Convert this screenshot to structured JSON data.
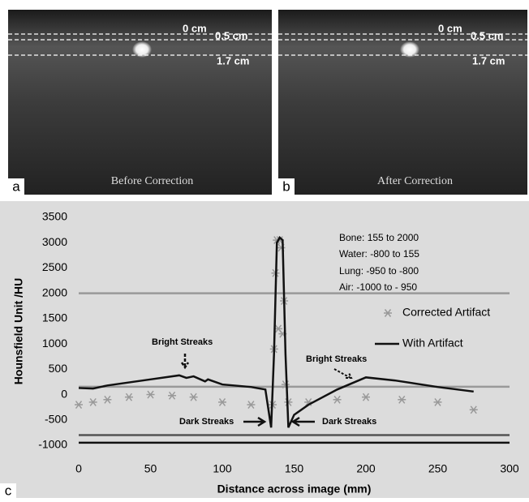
{
  "panels": [
    {
      "label": "a",
      "caption": "Before Correction",
      "depths": [
        "0 cm",
        "0.5 cm",
        "1.7 cm"
      ]
    },
    {
      "label": "b",
      "caption": "After Correction",
      "depths": [
        "0 cm",
        "0.5 cm",
        "1.7 cm"
      ]
    }
  ],
  "chart_label": "c",
  "chart_data": {
    "type": "line",
    "xlabel": "Distance across image (mm)",
    "ylabel": "Hounsfield Unit /HU",
    "xlim": [
      0,
      300
    ],
    "xticks": [
      0,
      50,
      100,
      150,
      200,
      250,
      300
    ],
    "ylim": [
      -1000,
      3500
    ],
    "yticks": [
      -1000,
      -500,
      0,
      500,
      1000,
      1500,
      2000,
      2500,
      3000,
      3500
    ],
    "legend": "right",
    "reference_lines": [
      2000,
      155,
      -800,
      -950
    ],
    "annotations": [
      "Bone: 155 to 2000",
      "Water: -800 to 155",
      "Lung:  -950 to -800",
      "Air: -1000 to - 950",
      "Bright Streaks",
      "Bright Streaks",
      "Dark Streaks",
      "Dark Streaks"
    ],
    "series": [
      {
        "name": "Corrected Artifact",
        "color": "#999999",
        "marker": "asterisk",
        "x": [
          0,
          10,
          20,
          35,
          50,
          65,
          80,
          100,
          120,
          135,
          136,
          137,
          138,
          139,
          140,
          141,
          142,
          143,
          144,
          146,
          160,
          180,
          200,
          225,
          250,
          275
        ],
        "values": [
          -200,
          -150,
          -100,
          -50,
          0,
          -20,
          -50,
          -150,
          -200,
          -200,
          900,
          2400,
          3050,
          1300,
          3050,
          2900,
          1200,
          1850,
          200,
          -150,
          -150,
          -100,
          -50,
          -100,
          -150,
          -300
        ]
      },
      {
        "name": "With Artifact",
        "color": "#111111",
        "marker": "none",
        "x": [
          0,
          10,
          20,
          50,
          70,
          75,
          80,
          88,
          90,
          100,
          120,
          130,
          134,
          136,
          138,
          140,
          142,
          144,
          146,
          150,
          160,
          180,
          200,
          220,
          250,
          275
        ],
        "values": [
          130,
          120,
          180,
          300,
          380,
          330,
          360,
          260,
          300,
          200,
          150,
          100,
          -650,
          800,
          3000,
          3100,
          3050,
          800,
          -650,
          -400,
          -200,
          100,
          340,
          280,
          150,
          60
        ]
      }
    ]
  }
}
